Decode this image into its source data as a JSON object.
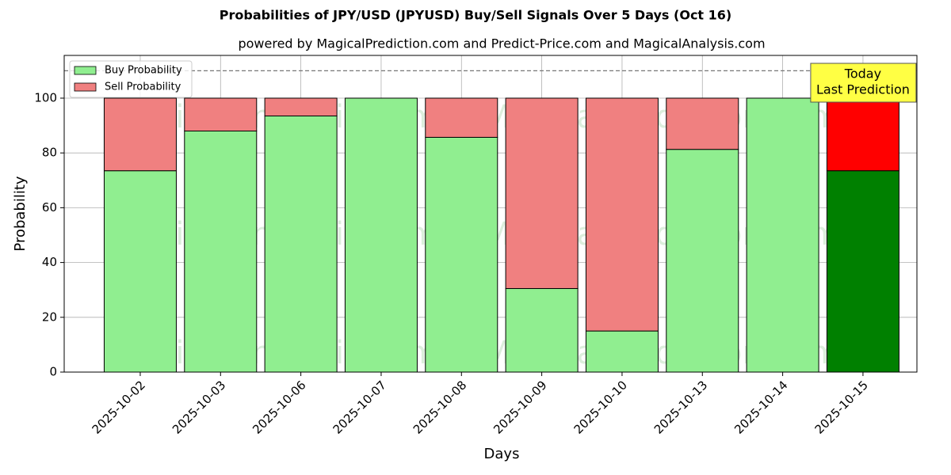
{
  "chart_data": {
    "type": "stacked_bar",
    "title": "Probabilities of JPY/USD (JPYUSD) Buy/Sell Signals Over 5 Days (Oct 16)",
    "subtitle": "powered by MagicalPrediction.com and Predict-Price.com and MagicalAnalysis.com",
    "x_label": "Days",
    "y_label": "Probability",
    "categories": [
      "2025-10-02",
      "2025-10-03",
      "2025-10-06",
      "2025-10-07",
      "2025-10-08",
      "2025-10-09",
      "2025-10-10",
      "2025-10-13",
      "2025-10-14",
      "2025-10-15"
    ],
    "series": [
      {
        "name": "Buy Probability",
        "color": "#90ee90",
        "colors": [
          "#90ee90",
          "#90ee90",
          "#90ee90",
          "#90ee90",
          "#90ee90",
          "#90ee90",
          "#90ee90",
          "#90ee90",
          "#90ee90",
          "#008000"
        ],
        "values": [
          73.5,
          88,
          93.5,
          100,
          85.7,
          30.5,
          15,
          81.3,
          100,
          73.5
        ]
      },
      {
        "name": "Sell Probability",
        "color": "#f08080",
        "colors": [
          "#f08080",
          "#f08080",
          "#f08080",
          "#f08080",
          "#f08080",
          "#f08080",
          "#f08080",
          "#f08080",
          "#f08080",
          "#ff0000"
        ],
        "values": [
          26.5,
          12,
          6.5,
          0,
          14.3,
          69.5,
          85,
          18.7,
          0,
          26.5
        ]
      }
    ],
    "ylim": [
      0,
      115.6
    ],
    "yticks": [
      0,
      20,
      40,
      60,
      80,
      100
    ],
    "grid": true,
    "legend": "upper left",
    "hline": 110,
    "annotation": [
      "Today",
      "Last Prediction"
    ],
    "watermarks": [
      "MagicalAnalysis.com",
      "MagicalPrediction.com"
    ]
  }
}
